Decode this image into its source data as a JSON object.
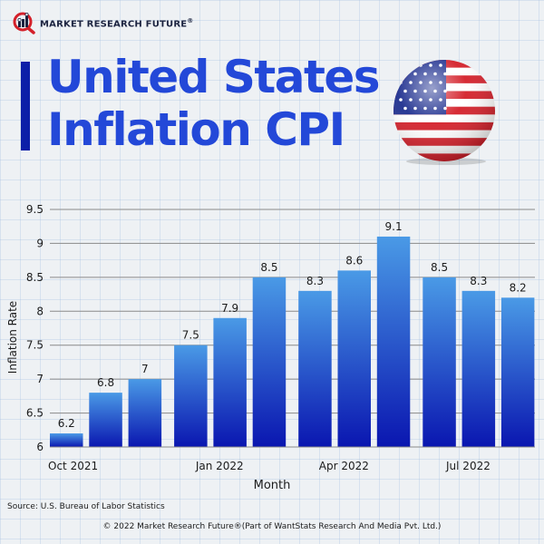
{
  "brand": {
    "logo_text": "MARKET RESEARCH FUTURE",
    "logo_reg": "®",
    "logo_icon": "magnifier-bar-chart-icon"
  },
  "header": {
    "title_line1": "United States",
    "title_line2": "Inflation CPI",
    "flag_icon": "us-flag-sphere-icon"
  },
  "colors": {
    "title": "#2348d8",
    "title_bar": "#0c1fa8",
    "bar_top": "#4a9ae6",
    "bar_bottom": "#0a16b0",
    "gridline": "#8a8a8a"
  },
  "chart_data": {
    "type": "bar",
    "title": "United States Inflation CPI",
    "xlabel": "Month",
    "ylabel": "Inflation Rate",
    "ylim": [
      6,
      9.5
    ],
    "yticks": [
      6,
      6.5,
      7,
      7.5,
      8,
      8.5,
      9,
      9.5
    ],
    "ytick_labels": [
      "6",
      "6.5",
      "7",
      "7.5",
      "8",
      "8.5",
      "9",
      "9.5"
    ],
    "x_tick_labels": [
      {
        "label": "Oct 2021",
        "bar_index": 0
      },
      {
        "label": "Jan 2022",
        "bar_index": 3
      },
      {
        "label": "Apr 2022",
        "bar_index": 6
      },
      {
        "label": "Jul 2022",
        "bar_index": 9
      }
    ],
    "values": [
      6.2,
      6.8,
      7,
      7.5,
      7.9,
      8.5,
      8.3,
      8.6,
      9.1,
      8.5,
      8.3,
      8.2
    ],
    "data_labels": [
      "6.2",
      "6.8",
      "7",
      "7.5",
      "7.9",
      "8.5",
      "8.3",
      "8.6",
      "9.1",
      "8.5",
      "8.3",
      "8.2"
    ],
    "grid": true,
    "legend": "none"
  },
  "footer": {
    "source": "Source: U.S. Bureau of Labor Statistics",
    "copyright": "© 2022 Market Research Future®(Part of WantStats Research And Media Pvt. Ltd.)"
  }
}
